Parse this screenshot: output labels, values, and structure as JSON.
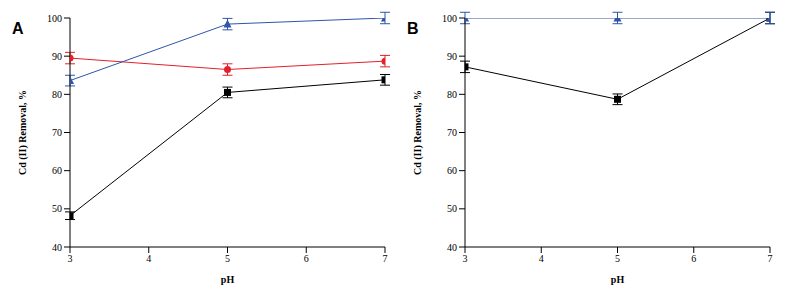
{
  "chart_data": [
    {
      "type": "line",
      "title": "A",
      "xlabel": "pH",
      "ylabel": "Cd (II) Removal, %",
      "x": [
        3,
        5,
        7
      ],
      "xlim": [
        3,
        7
      ],
      "xticks": [
        3,
        4,
        5,
        6,
        7
      ],
      "ylim": [
        40,
        100
      ],
      "yticks": [
        40,
        50,
        60,
        70,
        80,
        90,
        100
      ],
      "grid": false,
      "series": [
        {
          "color": "#000000",
          "marker": "square",
          "values": [
            48.2,
            80.5,
            83.8
          ],
          "errors": [
            1.0,
            1.4,
            1.4
          ]
        },
        {
          "color": "#e3202a",
          "marker": "circle",
          "values": [
            89.5,
            86.5,
            88.7
          ],
          "errors": [
            1.5,
            1.5,
            1.5
          ]
        },
        {
          "color": "#2f55a8",
          "marker": "triangle",
          "values": [
            83.6,
            98.4,
            100
          ],
          "errors": [
            1.4,
            1.5,
            1.5
          ]
        }
      ]
    },
    {
      "type": "line",
      "title": "B",
      "xlabel": "pH",
      "ylabel": "Cd (II) Removal, %",
      "x": [
        3,
        5,
        7
      ],
      "xlim": [
        3,
        7
      ],
      "xticks": [
        3,
        4,
        5,
        6,
        7
      ],
      "ylim": [
        40,
        100
      ],
      "yticks": [
        40,
        50,
        60,
        70,
        80,
        90,
        100
      ],
      "grid": false,
      "series": [
        {
          "color": "#000000",
          "marker": "square",
          "values": [
            87.2,
            78.7,
            100
          ],
          "errors": [
            1.5,
            1.4,
            1.5
          ]
        },
        {
          "color": "#2f55a8",
          "marker": "triangle",
          "values": [
            100,
            100,
            100
          ],
          "errors": [
            1.5,
            1.5,
            1.5
          ]
        }
      ]
    }
  ]
}
